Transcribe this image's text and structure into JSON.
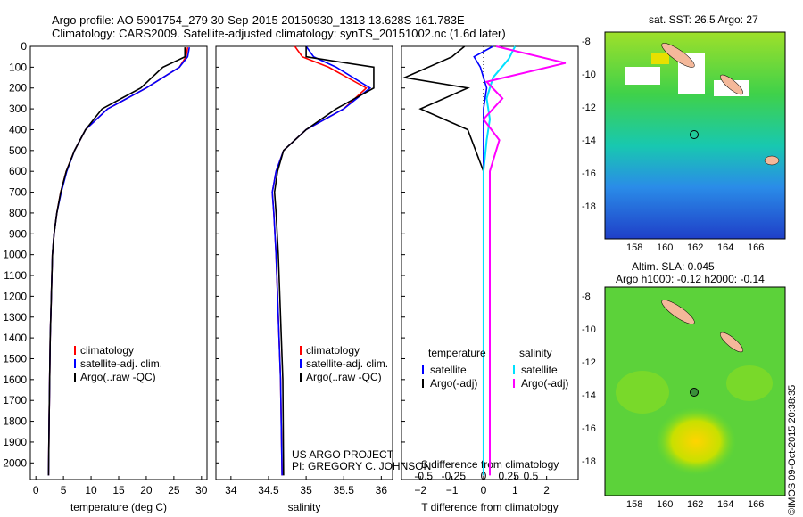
{
  "header": {
    "line1": "Argo profile: AO 5901754_279 30-Sep-2015 20150930_1313 13.628S 161.783E",
    "line2": "Climatology: CARS2009. Satellite-adjusted climatology: synTS_20151002.nc (1.6d later)"
  },
  "colors": {
    "clim": "#ff0000",
    "sat": "#0000ff",
    "argo": "#000000",
    "sat_s": "#00e0ff",
    "argo_s": "#ff00ff"
  },
  "chart_data": [
    {
      "type": "line",
      "name": "temperature-panel",
      "xlabel": "temperature (deg C)",
      "ylabel": "",
      "xlim": [
        -1,
        31
      ],
      "ylim": [
        2080,
        0
      ],
      "xticks": [
        0,
        5,
        10,
        15,
        20,
        25,
        30
      ],
      "yticks": [
        0,
        100,
        200,
        300,
        400,
        500,
        600,
        700,
        800,
        900,
        1000,
        1100,
        1200,
        1300,
        1400,
        1500,
        1600,
        1700,
        1800,
        1900,
        2000
      ],
      "legend": [
        "climatology",
        "satellite-adj. clim.",
        "Argo(..raw -QC)"
      ],
      "series": [
        {
          "name": "climatology",
          "color": "#ff0000",
          "x": [
            27.5,
            27.2,
            26,
            20,
            13,
            9,
            7,
            5.5,
            4.5,
            3.8,
            3.3,
            3.0,
            2.8,
            2.6,
            2.5,
            2.4,
            2.3
          ],
          "y": [
            5,
            50,
            100,
            200,
            300,
            400,
            500,
            600,
            700,
            800,
            900,
            1000,
            1200,
            1400,
            1600,
            1800,
            2060
          ]
        },
        {
          "name": "satellite-adj. clim.",
          "color": "#0000ff",
          "x": [
            27.8,
            27.5,
            26,
            20,
            13,
            9,
            7,
            5.6,
            4.6,
            3.8,
            3.3,
            3.0,
            2.8,
            2.6,
            2.5,
            2.4,
            2.3
          ],
          "y": [
            5,
            50,
            100,
            200,
            300,
            400,
            500,
            600,
            700,
            800,
            900,
            1000,
            1200,
            1400,
            1600,
            1800,
            2060
          ]
        },
        {
          "name": "Argo(..raw -QC)",
          "color": "#000000",
          "x": [
            27,
            27,
            23,
            19,
            12,
            9,
            7,
            5.5,
            4.5,
            3.8,
            3.3,
            3.0,
            2.8,
            2.6,
            2.5,
            2.4,
            2.3
          ],
          "y": [
            5,
            50,
            100,
            200,
            300,
            400,
            500,
            600,
            700,
            800,
            900,
            1000,
            1200,
            1400,
            1600,
            1800,
            2060
          ]
        }
      ]
    },
    {
      "type": "line",
      "name": "salinity-panel",
      "xlabel": "salinity",
      "ylabel": "",
      "xlim": [
        33.8,
        36.15
      ],
      "ylim": [
        2080,
        0
      ],
      "xticks": [
        34,
        34.5,
        35,
        35.5,
        36
      ],
      "legend": [
        "climatology",
        "satellite-adj. clim.",
        "Argo(..raw -QC)"
      ],
      "annotations": [
        "US ARGO PROJECT",
        "PI: GREGORY C. JOHNSON"
      ],
      "series": [
        {
          "name": "climatology",
          "color": "#ff0000",
          "x": [
            34.85,
            34.95,
            35.3,
            35.8,
            35.5,
            35.0,
            34.7,
            34.6,
            34.55,
            34.57,
            34.6,
            34.62,
            34.64,
            34.66,
            34.68
          ],
          "y": [
            0,
            50,
            100,
            200,
            300,
            400,
            500,
            600,
            700,
            800,
            1000,
            1200,
            1400,
            1600,
            2060
          ]
        },
        {
          "name": "satellite-adj. clim.",
          "color": "#0000ff",
          "x": [
            35.0,
            35.1,
            35.4,
            35.85,
            35.5,
            35.0,
            34.7,
            34.6,
            34.55,
            34.57,
            34.6,
            34.62,
            34.64,
            34.66,
            34.68
          ],
          "y": [
            0,
            50,
            100,
            200,
            300,
            400,
            500,
            600,
            700,
            800,
            1000,
            1200,
            1400,
            1600,
            2060
          ]
        },
        {
          "name": "Argo(..raw -QC)",
          "color": "#000000",
          "x": [
            35.0,
            35.0,
            35.9,
            35.9,
            35.4,
            35.0,
            34.7,
            34.62,
            34.58,
            34.6,
            34.63,
            34.65,
            34.67,
            34.69,
            34.7
          ],
          "y": [
            0,
            50,
            100,
            200,
            300,
            400,
            500,
            600,
            700,
            800,
            1000,
            1200,
            1400,
            1600,
            2060
          ]
        }
      ]
    },
    {
      "type": "line",
      "name": "difference-panel",
      "xlabel": "T difference from climatology",
      "xlabel2": "S difference from climatology",
      "xlim": [
        -2.6,
        3.0
      ],
      "ylim": [
        2080,
        0
      ],
      "xticks": [
        -2,
        -1,
        0,
        1,
        2
      ],
      "xticks_s": [
        "-0.5",
        "-0.25",
        "0",
        "0.25",
        "0.5"
      ],
      "legend_titles": [
        "temperature",
        "salinity"
      ],
      "legend": [
        "satellite",
        "Argo(-adj)",
        "satellite",
        "Argo(-adj)"
      ],
      "series": [
        {
          "name": "T satellite",
          "color": "#0000ff",
          "x": [
            0.3,
            -0.3,
            -0.1,
            0.1,
            0,
            0,
            0,
            0,
            0
          ],
          "y": [
            0,
            50,
            100,
            200,
            300,
            400,
            600,
            1000,
            2060
          ]
        },
        {
          "name": "T Argo(-adj)",
          "color": "#000000",
          "x": [
            -0.6,
            -1.0,
            -2.5,
            -0.5,
            -2.0,
            -0.5,
            0,
            0,
            0
          ],
          "y": [
            0,
            50,
            150,
            200,
            300,
            400,
            600,
            1000,
            2060
          ]
        },
        {
          "name": "S satellite",
          "color": "#00e0ff",
          "x": [
            1.0,
            0.8,
            0.3,
            0.1,
            0.2,
            0.1,
            0,
            0,
            0
          ],
          "y": [
            0,
            60,
            150,
            250,
            350,
            450,
            600,
            1000,
            2060
          ]
        },
        {
          "name": "S Argo(-adj)",
          "color": "#ff00ff",
          "x": [
            0.4,
            2.6,
            0.1,
            0.6,
            0,
            0.5,
            0.2,
            0.2,
            0.2
          ],
          "y": [
            0,
            80,
            170,
            250,
            350,
            450,
            600,
            1000,
            2060
          ]
        }
      ]
    }
  ],
  "maps": [
    {
      "title": "sat. SST: 26.5 Argo: 27",
      "lon_ticks": [
        "158",
        "160",
        "162",
        "164",
        "166"
      ],
      "lat_ticks": [
        "-8",
        "-10",
        "-12",
        "-14",
        "-16",
        "-18"
      ]
    },
    {
      "title1": "Altim. SLA: 0.045",
      "title2": "Argo h1000: -0.12 h2000: -0.14",
      "lon_ticks": [
        "158",
        "160",
        "162",
        "164",
        "166"
      ],
      "lat_ticks": [
        "-8",
        "-10",
        "-12",
        "-14",
        "-16",
        "-18"
      ]
    }
  ],
  "credit": "©IMOS 09-Oct-2015 20:38:35"
}
